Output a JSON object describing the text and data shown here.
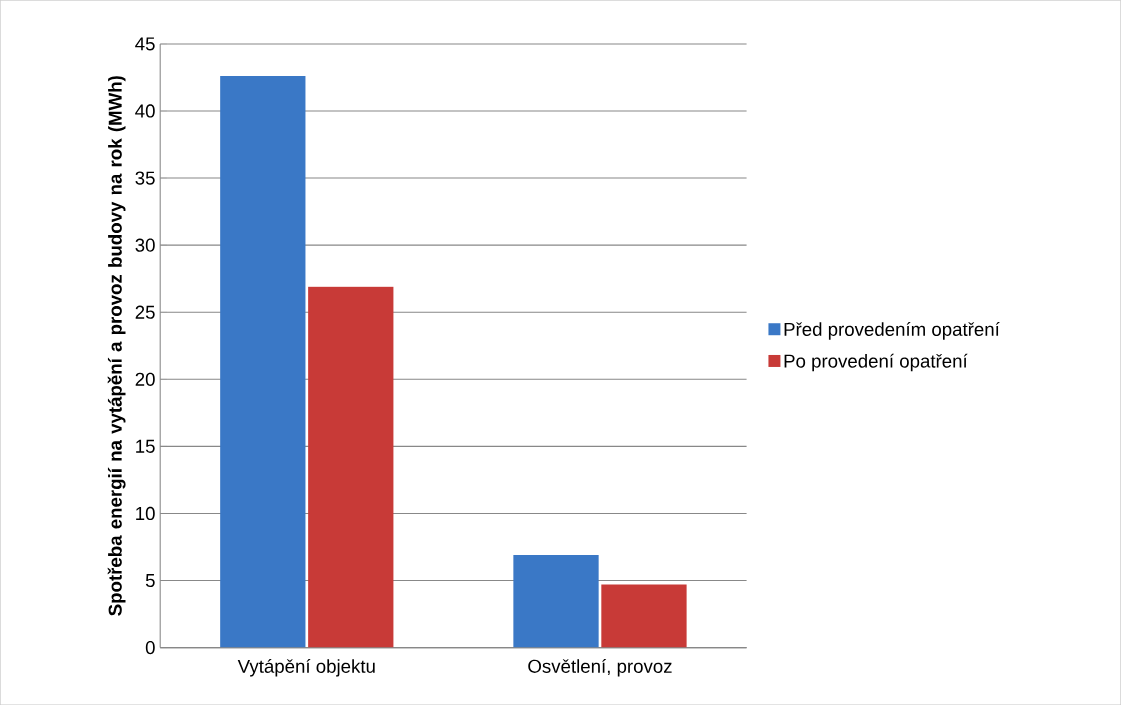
{
  "chart_data": {
    "type": "bar",
    "ylabel": "Spotřeba energií na vytápění a provoz budovy na rok (MWh)",
    "categories": [
      "Vytápění objektu",
      "Osvětlení, provoz"
    ],
    "series": [
      {
        "name": "Před provedením opatření",
        "color": "#3a78c6",
        "values": [
          42.6,
          6.9
        ]
      },
      {
        "name": "Po provedení opatření",
        "color": "#c83a37",
        "values": [
          26.9,
          4.7
        ]
      }
    ],
    "ylim": [
      0,
      45
    ],
    "yticks": [
      0,
      5,
      10,
      15,
      20,
      25,
      30,
      35,
      40,
      45
    ],
    "grid": "y",
    "legend": "right"
  }
}
